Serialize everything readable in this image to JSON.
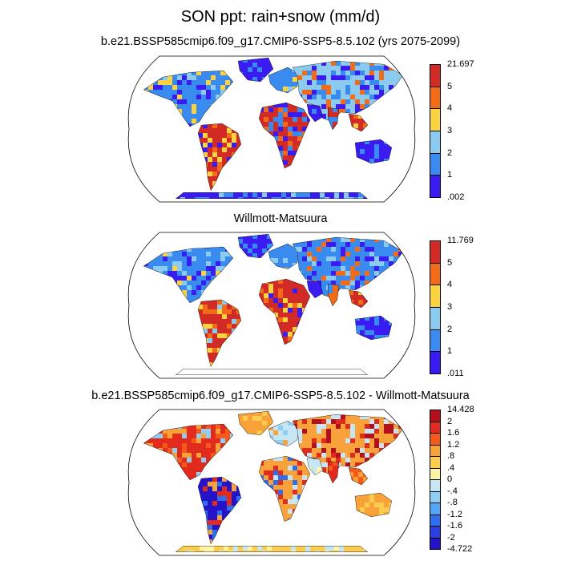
{
  "title": "SON ppt: rain+snow (mm/d)",
  "panels": [
    {
      "title": "b.e21.BSSP585cmip6.f09_g17.CMIP6-SSP5-8.5.102 (yrs 2075-2099)",
      "colorbar": {
        "labels": [
          "21.697",
          "5",
          "4",
          "3",
          "2",
          "1",
          ".002"
        ],
        "colors": [
          "#d22b26",
          "#f26b18",
          "#fbd23f",
          "#8ccbf0",
          "#3a8bf0",
          "#3a1cf2"
        ]
      }
    },
    {
      "title": "Willmott-Matsuura",
      "colorbar": {
        "labels": [
          "11.769",
          "5",
          "4",
          "3",
          "2",
          "1",
          ".011"
        ],
        "colors": [
          "#d22b26",
          "#f26b18",
          "#fbd23f",
          "#8ccbf0",
          "#3a8bf0",
          "#3a1cf2"
        ]
      }
    },
    {
      "title": "b.e21.BSSP585cmip6.f09_g17.CMIP6-SSP5-8.5.102 - Willmott-Matsuura",
      "colorbar": {
        "labels": [
          "14.428",
          "2",
          "1.6",
          "1.2",
          ".8",
          ".4",
          "0",
          "-.4",
          "-.8",
          "-1.2",
          "-1.6",
          "-2",
          "-4.722"
        ],
        "colors": [
          "#b40f1f",
          "#e22a1d",
          "#f55a1c",
          "#f9a23a",
          "#fccc4e",
          "#fff3a6",
          "#c7e6f5",
          "#8fcff5",
          "#4fa7f5",
          "#2e6ff0",
          "#2a40e0",
          "#2413c8"
        ]
      }
    }
  ]
}
